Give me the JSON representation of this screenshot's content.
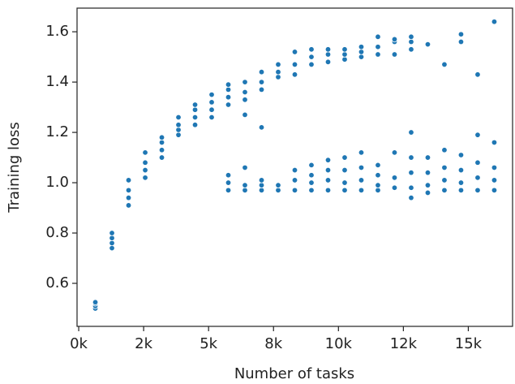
{
  "chart_data": {
    "type": "scatter",
    "color": "#1f77b4",
    "x_label": "Number of tasks",
    "y_label": "Training loss",
    "xlim": [
      -64,
      16704
    ],
    "ylim": [
      0.429,
      1.694
    ],
    "xticks": [
      {
        "value": 0,
        "label": "0k"
      },
      {
        "value": 2500,
        "label": "2k"
      },
      {
        "value": 5000,
        "label": "5k"
      },
      {
        "value": 7500,
        "label": "8k"
      },
      {
        "value": 10000,
        "label": "10k"
      },
      {
        "value": 12500,
        "label": "12k"
      },
      {
        "value": 15000,
        "label": "15k"
      }
    ],
    "yticks": [
      0.6,
      0.8,
      {
        "value": 1,
        "label": "1.0"
      },
      1.2,
      1.4,
      1.6
    ],
    "x": [
      640,
      640,
      640,
      640,
      1280,
      1280,
      1280,
      1280,
      1920,
      1920,
      1920,
      1920,
      2560,
      2560,
      2560,
      2560,
      3200,
      3200,
      3200,
      3200,
      3840,
      3840,
      3840,
      3840,
      4480,
      4480,
      4480,
      4480,
      5120,
      5120,
      5120,
      5120,
      5760,
      5760,
      5760,
      5760,
      5760,
      5760,
      5760,
      6400,
      6400,
      6400,
      6400,
      6400,
      6400,
      6400,
      7040,
      7040,
      7040,
      7040,
      7040,
      7040,
      7040,
      7680,
      7680,
      7680,
      7680,
      7680,
      8320,
      8320,
      8320,
      8320,
      8320,
      8320,
      8960,
      8960,
      8960,
      8960,
      8960,
      8960,
      8960,
      9600,
      9600,
      9600,
      9600,
      9600,
      9600,
      9600,
      10240,
      10240,
      10240,
      10240,
      10240,
      10240,
      10240,
      10880,
      10880,
      10880,
      10880,
      10880,
      10880,
      10880,
      11520,
      11520,
      11520,
      11520,
      11520,
      11520,
      11520,
      12160,
      12160,
      12160,
      12160,
      12160,
      12160,
      12800,
      12800,
      12800,
      12800,
      12800,
      12800,
      12800,
      12800,
      13440,
      13440,
      13440,
      13440,
      13440,
      14080,
      14080,
      14080,
      14080,
      14080,
      14720,
      14720,
      14720,
      14720,
      14720,
      14720,
      15360,
      15360,
      15360,
      15360,
      15360,
      16000,
      16000,
      16000,
      16000,
      16000
    ],
    "values": [
      0.5,
      0.51,
      0.52,
      0.525,
      0.74,
      0.76,
      0.78,
      0.8,
      0.91,
      0.94,
      0.97,
      1.01,
      1.02,
      1.05,
      1.08,
      1.12,
      1.1,
      1.13,
      1.16,
      1.18,
      1.19,
      1.21,
      1.23,
      1.26,
      1.23,
      1.26,
      1.29,
      1.31,
      1.26,
      1.29,
      1.32,
      1.35,
      1.31,
      1.34,
      1.37,
      1.39,
      0.97,
      1.0,
      1.03,
      1.27,
      1.33,
      1.36,
      1.4,
      0.97,
      0.99,
      1.06,
      1.22,
      1.37,
      1.4,
      1.44,
      0.97,
      0.99,
      1.01,
      1.42,
      1.44,
      1.47,
      0.97,
      0.99,
      1.43,
      1.47,
      1.52,
      0.97,
      1.01,
      1.05,
      1.47,
      1.5,
      1.53,
      0.97,
      1.0,
      1.03,
      1.07,
      1.48,
      1.51,
      1.53,
      0.97,
      1.01,
      1.05,
      1.09,
      1.49,
      1.51,
      1.53,
      0.97,
      1.0,
      1.05,
      1.1,
      1.5,
      1.52,
      1.54,
      0.97,
      1.01,
      1.06,
      1.12,
      1.51,
      1.54,
      1.58,
      0.97,
      0.99,
      1.03,
      1.07,
      1.51,
      1.56,
      1.57,
      0.98,
      1.02,
      1.12,
      1.53,
      1.56,
      1.58,
      0.94,
      0.98,
      1.04,
      1.1,
      1.2,
      1.55,
      0.96,
      0.99,
      1.04,
      1.1,
      1.47,
      0.97,
      1.01,
      1.06,
      1.13,
      1.56,
      1.59,
      0.97,
      1.0,
      1.05,
      1.11,
      1.43,
      0.97,
      1.02,
      1.08,
      1.19,
      1.64,
      0.97,
      1.01,
      1.06,
      1.16
    ]
  }
}
